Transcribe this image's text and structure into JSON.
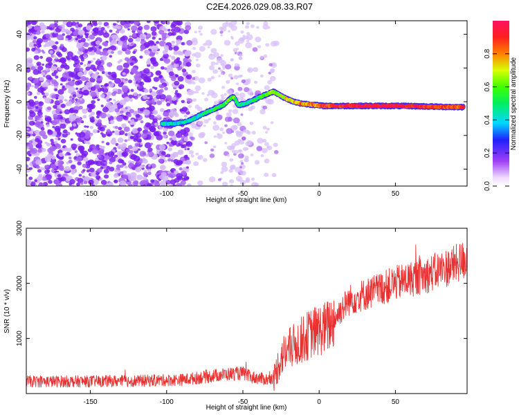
{
  "title": "C2E4.2026.029.08.33.R07",
  "colors": {
    "signal": "#e83232",
    "dots": "#8a3cf0",
    "axis": "#000000"
  },
  "chart_data": [
    {
      "type": "heatmap",
      "name": "spectrogram",
      "xlabel": "Height of straight line (km)",
      "ylabel": "Frequency (Hz)",
      "xlim": [
        -192,
        97
      ],
      "ylim": [
        -50,
        48
      ],
      "xticks": [
        -150,
        -100,
        -50,
        0,
        50
      ],
      "yticks": [
        -40,
        -20,
        0,
        20,
        40
      ],
      "colorbar": {
        "label": "Normalized spectral amplitude",
        "range": [
          0,
          1
        ],
        "ticks": [
          "0.0",
          "0.2",
          "0.4",
          "0.6",
          "0.8"
        ],
        "tick_values": [
          0.0,
          0.2,
          0.4,
          0.6,
          0.8
        ]
      },
      "ridge": {
        "x": [
          -103,
          -95,
          -88,
          -82,
          -78,
          -73,
          -68,
          -63,
          -58,
          -56,
          -53,
          -48,
          -43,
          -38,
          -33,
          -30,
          -26,
          -22,
          -17,
          -12,
          -7,
          -2,
          3,
          8,
          15,
          25,
          35,
          50,
          60,
          70,
          80,
          90,
          95
        ],
        "y": [
          -13,
          -13,
          -12,
          -10,
          -8,
          -6,
          -4,
          -2,
          2,
          3,
          -2,
          -1,
          1,
          3,
          5,
          6,
          4,
          2,
          0,
          -1,
          -1.5,
          -2,
          -2.5,
          -2.5,
          -2.5,
          -2.5,
          -2.5,
          -2.5,
          -2.6,
          -2.8,
          -3,
          -3.2,
          -3.2
        ],
        "amplitude": [
          0.45,
          0.42,
          0.4,
          0.42,
          0.45,
          0.5,
          0.52,
          0.55,
          0.6,
          0.62,
          0.5,
          0.45,
          0.5,
          0.55,
          0.6,
          0.6,
          0.65,
          0.7,
          0.75,
          0.8,
          0.8,
          0.82,
          0.85,
          0.88,
          0.9,
          0.95,
          0.95,
          0.95,
          0.93,
          0.9,
          0.85,
          0.85,
          0.85
        ]
      }
    },
    {
      "type": "line",
      "name": "snr",
      "xlabel": "Height of straight line (km)",
      "ylabel": "SNR (10 * v/v)",
      "xlim": [
        -192,
        97
      ],
      "ylim": [
        0,
        3000
      ],
      "xticks": [
        -150,
        -100,
        -50,
        0,
        50
      ],
      "yticks": [
        1000,
        2000,
        3000
      ],
      "series": [
        {
          "name": "SNR",
          "x": [
            -192,
            -160,
            -120,
            -90,
            -75,
            -65,
            -55,
            -50,
            -45,
            -40,
            -35,
            -30,
            -27,
            -24,
            -20,
            -15,
            -10,
            -5,
            0,
            5,
            10,
            15,
            20,
            30,
            40,
            50,
            60,
            70,
            80,
            85,
            90,
            97
          ],
          "y": [
            220,
            220,
            230,
            250,
            300,
            340,
            360,
            370,
            300,
            280,
            260,
            250,
            500,
            700,
            800,
            900,
            1000,
            1100,
            1150,
            1200,
            1350,
            1550,
            1700,
            1800,
            1900,
            2000,
            2080,
            2150,
            2250,
            2300,
            2350,
            2450
          ]
        }
      ]
    }
  ]
}
